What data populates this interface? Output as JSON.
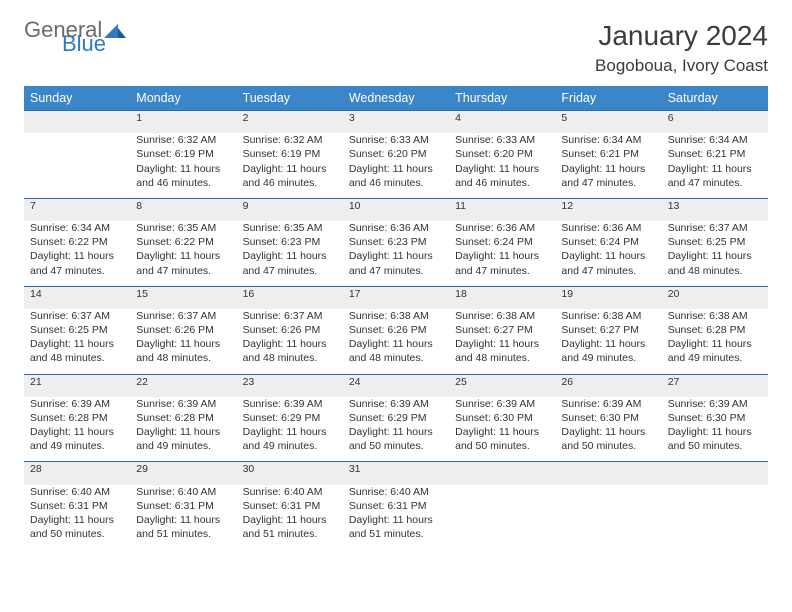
{
  "brand": {
    "word1": "General",
    "word2": "Blue",
    "color1": "#6b6b6b",
    "color2": "#2d7bc0"
  },
  "title": "January 2024",
  "location": "Bogoboua, Ivory Coast",
  "colors": {
    "header_bg": "#3a86c8",
    "header_fg": "#ffffff",
    "daynum_bg": "#eeeeee",
    "rule": "#2d6ea8"
  },
  "day_headers": [
    "Sunday",
    "Monday",
    "Tuesday",
    "Wednesday",
    "Thursday",
    "Friday",
    "Saturday"
  ],
  "weeks": [
    [
      null,
      {
        "n": "1",
        "sr": "6:32 AM",
        "ss": "6:19 PM",
        "dl": "11 hours and 46 minutes."
      },
      {
        "n": "2",
        "sr": "6:32 AM",
        "ss": "6:19 PM",
        "dl": "11 hours and 46 minutes."
      },
      {
        "n": "3",
        "sr": "6:33 AM",
        "ss": "6:20 PM",
        "dl": "11 hours and 46 minutes."
      },
      {
        "n": "4",
        "sr": "6:33 AM",
        "ss": "6:20 PM",
        "dl": "11 hours and 46 minutes."
      },
      {
        "n": "5",
        "sr": "6:34 AM",
        "ss": "6:21 PM",
        "dl": "11 hours and 47 minutes."
      },
      {
        "n": "6",
        "sr": "6:34 AM",
        "ss": "6:21 PM",
        "dl": "11 hours and 47 minutes."
      }
    ],
    [
      {
        "n": "7",
        "sr": "6:34 AM",
        "ss": "6:22 PM",
        "dl": "11 hours and 47 minutes."
      },
      {
        "n": "8",
        "sr": "6:35 AM",
        "ss": "6:22 PM",
        "dl": "11 hours and 47 minutes."
      },
      {
        "n": "9",
        "sr": "6:35 AM",
        "ss": "6:23 PM",
        "dl": "11 hours and 47 minutes."
      },
      {
        "n": "10",
        "sr": "6:36 AM",
        "ss": "6:23 PM",
        "dl": "11 hours and 47 minutes."
      },
      {
        "n": "11",
        "sr": "6:36 AM",
        "ss": "6:24 PM",
        "dl": "11 hours and 47 minutes."
      },
      {
        "n": "12",
        "sr": "6:36 AM",
        "ss": "6:24 PM",
        "dl": "11 hours and 47 minutes."
      },
      {
        "n": "13",
        "sr": "6:37 AM",
        "ss": "6:25 PM",
        "dl": "11 hours and 48 minutes."
      }
    ],
    [
      {
        "n": "14",
        "sr": "6:37 AM",
        "ss": "6:25 PM",
        "dl": "11 hours and 48 minutes."
      },
      {
        "n": "15",
        "sr": "6:37 AM",
        "ss": "6:26 PM",
        "dl": "11 hours and 48 minutes."
      },
      {
        "n": "16",
        "sr": "6:37 AM",
        "ss": "6:26 PM",
        "dl": "11 hours and 48 minutes."
      },
      {
        "n": "17",
        "sr": "6:38 AM",
        "ss": "6:26 PM",
        "dl": "11 hours and 48 minutes."
      },
      {
        "n": "18",
        "sr": "6:38 AM",
        "ss": "6:27 PM",
        "dl": "11 hours and 48 minutes."
      },
      {
        "n": "19",
        "sr": "6:38 AM",
        "ss": "6:27 PM",
        "dl": "11 hours and 49 minutes."
      },
      {
        "n": "20",
        "sr": "6:38 AM",
        "ss": "6:28 PM",
        "dl": "11 hours and 49 minutes."
      }
    ],
    [
      {
        "n": "21",
        "sr": "6:39 AM",
        "ss": "6:28 PM",
        "dl": "11 hours and 49 minutes."
      },
      {
        "n": "22",
        "sr": "6:39 AM",
        "ss": "6:28 PM",
        "dl": "11 hours and 49 minutes."
      },
      {
        "n": "23",
        "sr": "6:39 AM",
        "ss": "6:29 PM",
        "dl": "11 hours and 49 minutes."
      },
      {
        "n": "24",
        "sr": "6:39 AM",
        "ss": "6:29 PM",
        "dl": "11 hours and 50 minutes."
      },
      {
        "n": "25",
        "sr": "6:39 AM",
        "ss": "6:30 PM",
        "dl": "11 hours and 50 minutes."
      },
      {
        "n": "26",
        "sr": "6:39 AM",
        "ss": "6:30 PM",
        "dl": "11 hours and 50 minutes."
      },
      {
        "n": "27",
        "sr": "6:39 AM",
        "ss": "6:30 PM",
        "dl": "11 hours and 50 minutes."
      }
    ],
    [
      {
        "n": "28",
        "sr": "6:40 AM",
        "ss": "6:31 PM",
        "dl": "11 hours and 50 minutes."
      },
      {
        "n": "29",
        "sr": "6:40 AM",
        "ss": "6:31 PM",
        "dl": "11 hours and 51 minutes."
      },
      {
        "n": "30",
        "sr": "6:40 AM",
        "ss": "6:31 PM",
        "dl": "11 hours and 51 minutes."
      },
      {
        "n": "31",
        "sr": "6:40 AM",
        "ss": "6:31 PM",
        "dl": "11 hours and 51 minutes."
      },
      null,
      null,
      null
    ]
  ],
  "labels": {
    "sunrise": "Sunrise:",
    "sunset": "Sunset:",
    "daylight": "Daylight:"
  }
}
